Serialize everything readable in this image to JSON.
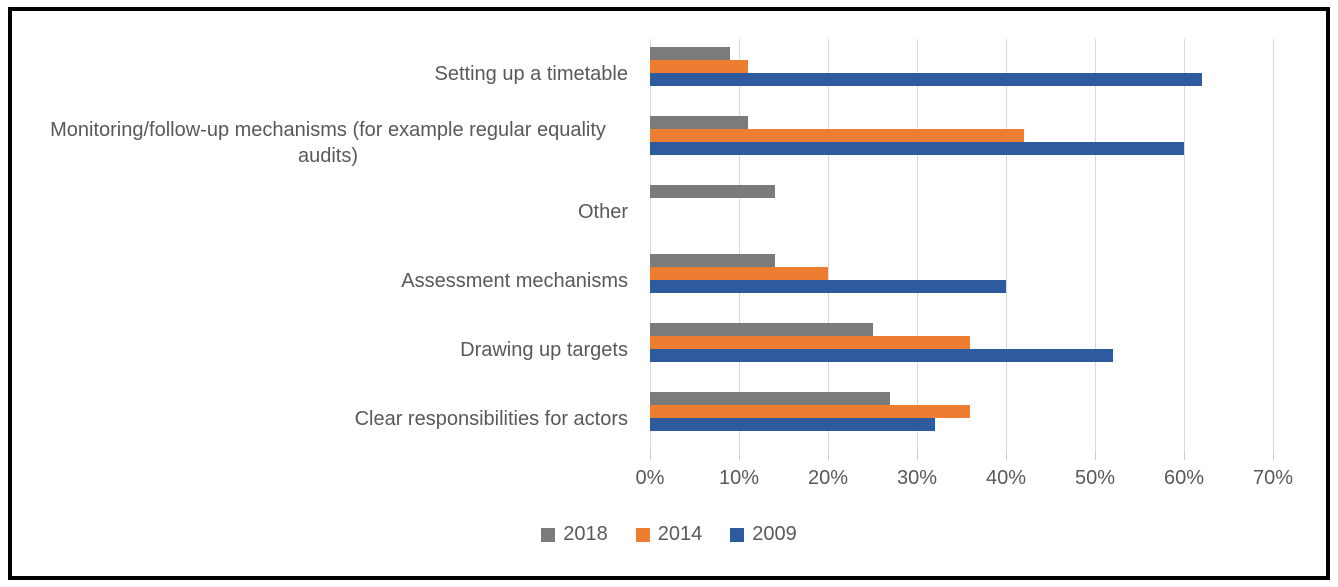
{
  "chart_data": {
    "type": "bar",
    "orientation": "horizontal",
    "title": "",
    "xlabel": "",
    "ylabel": "",
    "categories": [
      "Setting up a timetable",
      "Monitoring/follow-up mechanisms (for example regular equality audits)",
      "Other",
      "Assessment mechanisms",
      "Drawing up targets",
      "Clear responsibilities for actors"
    ],
    "series": [
      {
        "name": "2018",
        "color": "#7b7b7b",
        "values": [
          9,
          11,
          14,
          14,
          25,
          27
        ]
      },
      {
        "name": "2014",
        "color": "#ed7d31",
        "values": [
          11,
          42,
          0,
          20,
          36,
          36
        ]
      },
      {
        "name": "2009",
        "color": "#2e5b9e",
        "values": [
          62,
          60,
          0,
          40,
          52,
          32
        ]
      }
    ],
    "x_axis": {
      "min": 0,
      "max": 70,
      "tick_step": 10,
      "tick_labels": [
        "0%",
        "10%",
        "20%",
        "30%",
        "40%",
        "50%",
        "60%",
        "70%"
      ]
    },
    "grid": true,
    "legend_position": "bottom",
    "colors": {
      "text": "#595959",
      "gridline": "#d9d9d9",
      "frame_border": "#000000",
      "background": "#ffffff"
    }
  }
}
